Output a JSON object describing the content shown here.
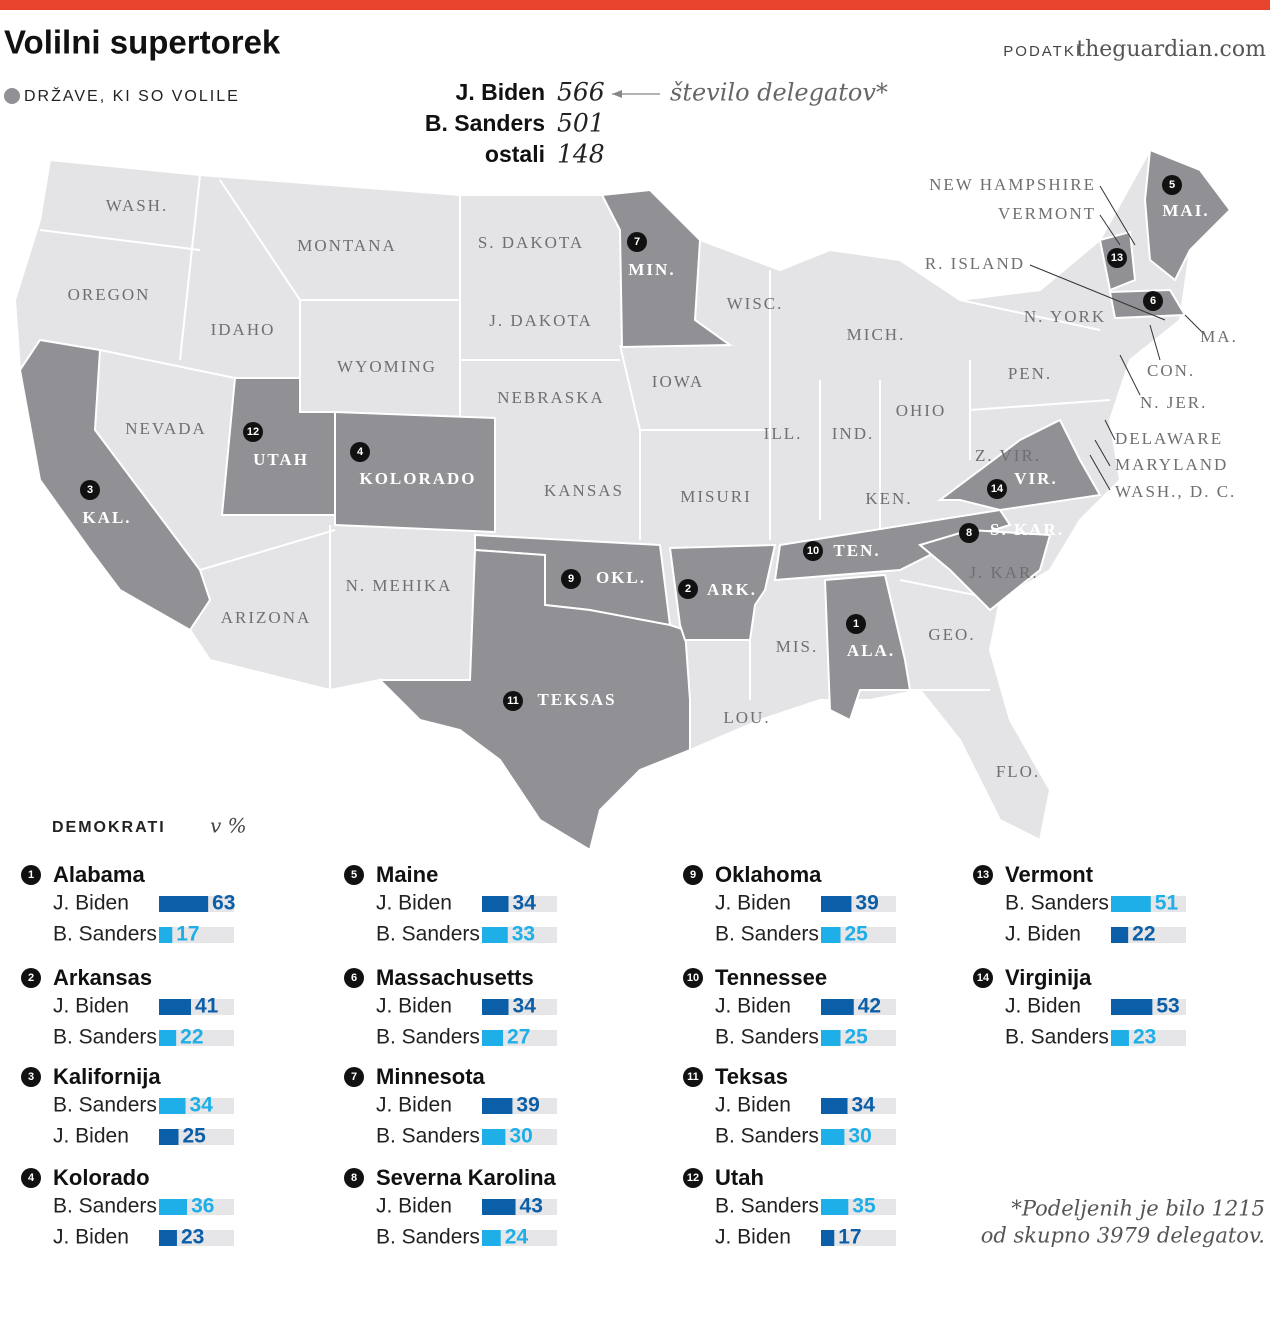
{
  "header": {
    "title": "Volilni supertorek",
    "source_label": "PODATKI",
    "source": "theguardian.com"
  },
  "legend": {
    "label": "DRŽAVE, KI SO VOLILE"
  },
  "totals": {
    "note": "število delegatov*",
    "rows": [
      {
        "name": "J. Biden",
        "value": 566
      },
      {
        "name": "B. Sanders",
        "value": 501
      },
      {
        "name": "ostali",
        "value": 148
      }
    ]
  },
  "map": {
    "states": [
      {
        "label": "WASH.",
        "voted": false
      },
      {
        "label": "MONTANA",
        "voted": false
      },
      {
        "label": "S. DAKOTA",
        "voted": false
      },
      {
        "label": "OREGON",
        "voted": false
      },
      {
        "label": "IDAHO",
        "voted": false
      },
      {
        "label": "J. DAKOTA",
        "voted": false
      },
      {
        "label": "WYOMING",
        "voted": false
      },
      {
        "label": "NEBRASKA",
        "voted": false
      },
      {
        "label": "IOWA",
        "voted": false
      },
      {
        "label": "NEVADA",
        "voted": false
      },
      {
        "label": "WISC.",
        "voted": false
      },
      {
        "label": "MICH.",
        "voted": false
      },
      {
        "label": "N. YORK",
        "voted": false
      },
      {
        "label": "PEN.",
        "voted": false
      },
      {
        "label": "OHIO",
        "voted": false
      },
      {
        "label": "ILL.",
        "voted": false
      },
      {
        "label": "IND.",
        "voted": false
      },
      {
        "label": "KANSAS",
        "voted": false
      },
      {
        "label": "MISURI",
        "voted": false
      },
      {
        "label": "KEN.",
        "voted": false
      },
      {
        "label": "Z. VIR.",
        "voted": false
      },
      {
        "label": "N. MEHIKA",
        "voted": false
      },
      {
        "label": "ARIZONA",
        "voted": false
      },
      {
        "label": "J. KAR.",
        "voted": false
      },
      {
        "label": "GEO.",
        "voted": false
      },
      {
        "label": "MIS.",
        "voted": false
      },
      {
        "label": "LOU.",
        "voted": false
      },
      {
        "label": "FLO.",
        "voted": false
      },
      {
        "label": "NEW HAMPSHIRE",
        "voted": false
      },
      {
        "label": "R. ISLAND",
        "voted": false
      },
      {
        "label": "CON.",
        "voted": false
      },
      {
        "label": "N. JER.",
        "voted": false
      },
      {
        "label": "DELAWARE",
        "voted": false
      },
      {
        "label": "MARYLAND",
        "voted": false
      },
      {
        "label": "WASH., D. C.",
        "voted": false
      },
      {
        "label": "ALA.",
        "voted": true,
        "number": 1
      },
      {
        "label": "ARK.",
        "voted": true,
        "number": 2
      },
      {
        "label": "KAL.",
        "voted": true,
        "number": 3
      },
      {
        "label": "KOLORADO",
        "voted": true,
        "number": 4
      },
      {
        "label": "MAI.",
        "voted": true,
        "number": 5
      },
      {
        "label": "MA.",
        "voted": true,
        "number": 6
      },
      {
        "label": "MIN.",
        "voted": true,
        "number": 7
      },
      {
        "label": "S. KAR.",
        "voted": true,
        "number": 8
      },
      {
        "label": "OKL.",
        "voted": true,
        "number": 9
      },
      {
        "label": "TEN.",
        "voted": true,
        "number": 10
      },
      {
        "label": "TEKSAS",
        "voted": true,
        "number": 11
      },
      {
        "label": "UTAH",
        "voted": true,
        "number": 12
      },
      {
        "label": "VERMONT",
        "voted": true,
        "number": 13
      },
      {
        "label": "VIR.",
        "voted": true,
        "number": 14
      }
    ]
  },
  "results": {
    "title": "DEMOKRATI",
    "unit": "v %",
    "states": [
      {
        "number": 1,
        "name": "Alabama",
        "candidates": [
          {
            "name": "J. Biden",
            "value": 63,
            "color": "#0b5ea8"
          },
          {
            "name": "B. Sanders",
            "value": 17,
            "color": "#1eaee8"
          }
        ]
      },
      {
        "number": 2,
        "name": "Arkansas",
        "candidates": [
          {
            "name": "J. Biden",
            "value": 41,
            "color": "#0b5ea8"
          },
          {
            "name": "B. Sanders",
            "value": 22,
            "color": "#1eaee8"
          }
        ]
      },
      {
        "number": 3,
        "name": "Kalifornija",
        "candidates": [
          {
            "name": "B. Sanders",
            "value": 34,
            "color": "#1eaee8"
          },
          {
            "name": "J. Biden",
            "value": 25,
            "color": "#0b5ea8"
          }
        ]
      },
      {
        "number": 4,
        "name": "Kolorado",
        "candidates": [
          {
            "name": "B. Sanders",
            "value": 36,
            "color": "#1eaee8"
          },
          {
            "name": "J. Biden",
            "value": 23,
            "color": "#0b5ea8"
          }
        ]
      },
      {
        "number": 5,
        "name": "Maine",
        "candidates": [
          {
            "name": "J. Biden",
            "value": 34,
            "color": "#0b5ea8"
          },
          {
            "name": "B. Sanders",
            "value": 33,
            "color": "#1eaee8"
          }
        ]
      },
      {
        "number": 6,
        "name": "Massachusetts",
        "candidates": [
          {
            "name": "J. Biden",
            "value": 34,
            "color": "#0b5ea8"
          },
          {
            "name": "B. Sanders",
            "value": 27,
            "color": "#1eaee8"
          }
        ]
      },
      {
        "number": 7,
        "name": "Minnesota",
        "candidates": [
          {
            "name": "J. Biden",
            "value": 39,
            "color": "#0b5ea8"
          },
          {
            "name": "B. Sanders",
            "value": 30,
            "color": "#1eaee8"
          }
        ]
      },
      {
        "number": 8,
        "name": "Severna Karolina",
        "candidates": [
          {
            "name": "J. Biden",
            "value": 43,
            "color": "#0b5ea8"
          },
          {
            "name": "B. Sanders",
            "value": 24,
            "color": "#1eaee8"
          }
        ]
      },
      {
        "number": 9,
        "name": "Oklahoma",
        "candidates": [
          {
            "name": "J. Biden",
            "value": 39,
            "color": "#0b5ea8"
          },
          {
            "name": "B. Sanders",
            "value": 25,
            "color": "#1eaee8"
          }
        ]
      },
      {
        "number": 10,
        "name": "Tennessee",
        "candidates": [
          {
            "name": "J. Biden",
            "value": 42,
            "color": "#0b5ea8"
          },
          {
            "name": "B. Sanders",
            "value": 25,
            "color": "#1eaee8"
          }
        ]
      },
      {
        "number": 11,
        "name": "Teksas",
        "candidates": [
          {
            "name": "J. Biden",
            "value": 34,
            "color": "#0b5ea8"
          },
          {
            "name": "B. Sanders",
            "value": 30,
            "color": "#1eaee8"
          }
        ]
      },
      {
        "number": 12,
        "name": "Utah",
        "candidates": [
          {
            "name": "B. Sanders",
            "value": 35,
            "color": "#1eaee8"
          },
          {
            "name": "J. Biden",
            "value": 17,
            "color": "#0b5ea8"
          }
        ]
      },
      {
        "number": 13,
        "name": "Vermont",
        "candidates": [
          {
            "name": "B. Sanders",
            "value": 51,
            "color": "#1eaee8"
          },
          {
            "name": "J. Biden",
            "value": 22,
            "color": "#0b5ea8"
          }
        ]
      },
      {
        "number": 14,
        "name": "Virginija",
        "candidates": [
          {
            "name": "J. Biden",
            "value": 53,
            "color": "#0b5ea8"
          },
          {
            "name": "B. Sanders",
            "value": 23,
            "color": "#1eaee8"
          }
        ]
      }
    ]
  },
  "footnote": {
    "lines": [
      "*Podeljenih je bilo 1215",
      "od skupno 3979 delegatov."
    ]
  }
}
